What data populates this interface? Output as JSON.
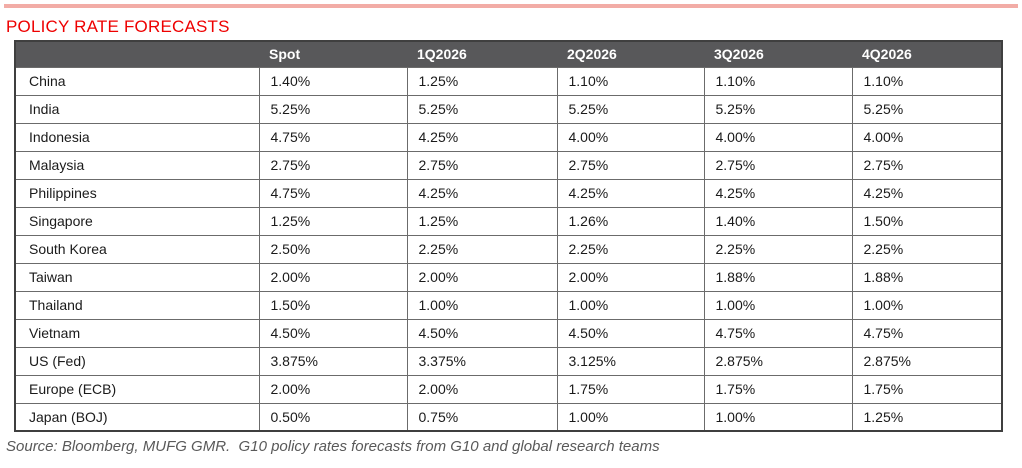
{
  "page": {
    "title": "POLICY RATE FORECASTS",
    "source_note": "Source: Bloomberg, MUFG GMR.  G10 policy rates forecasts from G10 and global research teams"
  },
  "colors": {
    "accent_red": "#EE0000",
    "top_rule": "#F2ACA6",
    "header_bg": "#58585A",
    "header_text": "#FFFFFF",
    "border_inner": "#6B6B6B",
    "border_outer": "#3F3F3F",
    "body_text": "#1A1A1A",
    "source_text": "#595959"
  },
  "table": {
    "columns": [
      "",
      "Spot",
      "1Q2026",
      "2Q2026",
      "3Q2026",
      "4Q2026"
    ],
    "rows": [
      {
        "label": "China",
        "values": [
          "1.40%",
          "1.25%",
          "1.10%",
          "1.10%",
          "1.10%"
        ]
      },
      {
        "label": "India",
        "values": [
          "5.25%",
          "5.25%",
          "5.25%",
          "5.25%",
          "5.25%"
        ]
      },
      {
        "label": "Indonesia",
        "values": [
          "4.75%",
          "4.25%",
          "4.00%",
          "4.00%",
          "4.00%"
        ]
      },
      {
        "label": "Malaysia",
        "values": [
          "2.75%",
          "2.75%",
          "2.75%",
          "2.75%",
          "2.75%"
        ]
      },
      {
        "label": "Philippines",
        "values": [
          "4.75%",
          "4.25%",
          "4.25%",
          "4.25%",
          "4.25%"
        ]
      },
      {
        "label": "Singapore",
        "values": [
          "1.25%",
          "1.25%",
          "1.26%",
          "1.40%",
          "1.50%"
        ]
      },
      {
        "label": "South Korea",
        "values": [
          "2.50%",
          "2.25%",
          "2.25%",
          "2.25%",
          "2.25%"
        ]
      },
      {
        "label": "Taiwan",
        "values": [
          "2.00%",
          "2.00%",
          "2.00%",
          "1.88%",
          "1.88%"
        ]
      },
      {
        "label": "Thailand",
        "values": [
          "1.50%",
          "1.00%",
          "1.00%",
          "1.00%",
          "1.00%"
        ]
      },
      {
        "label": "Vietnam",
        "values": [
          "4.50%",
          "4.50%",
          "4.50%",
          "4.75%",
          "4.75%"
        ]
      },
      {
        "label": "US (Fed)",
        "values": [
          "3.875%",
          "3.375%",
          "3.125%",
          "2.875%",
          "2.875%"
        ]
      },
      {
        "label": "Europe (ECB)",
        "values": [
          "2.00%",
          "2.00%",
          "1.75%",
          "1.75%",
          "1.75%"
        ]
      },
      {
        "label": "Japan (BOJ)",
        "values": [
          "0.50%",
          "0.75%",
          "1.00%",
          "1.00%",
          "1.25%"
        ]
      }
    ]
  }
}
